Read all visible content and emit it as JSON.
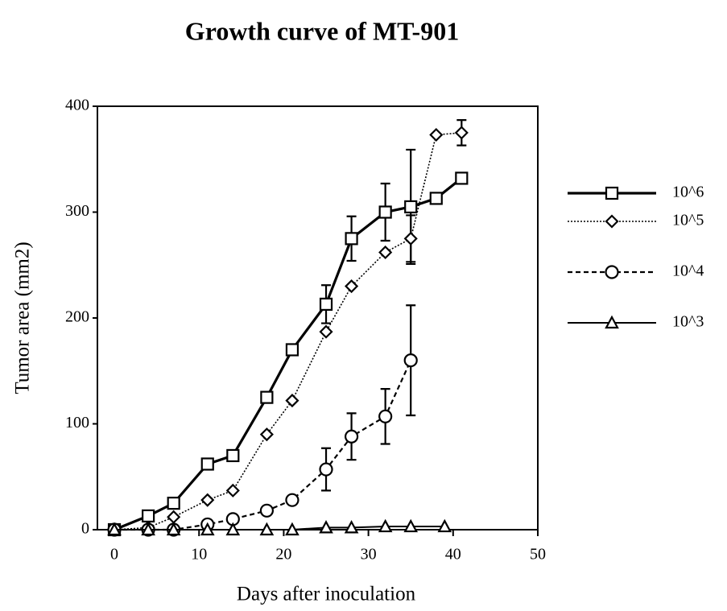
{
  "chart_data": {
    "type": "line",
    "title": "Growth curve of MT-901",
    "x_label": "Days after inoculation",
    "y_label": "Tumor area (mm2)",
    "xlim": [
      -2,
      50
    ],
    "xticks": [
      0,
      10,
      20,
      30,
      40,
      50
    ],
    "ylim": [
      0,
      400
    ],
    "yticks": [
      0,
      100,
      200,
      300,
      400
    ],
    "legend": "right",
    "series": [
      {
        "name": "10^6",
        "color": "#000000",
        "marker": "square",
        "line_style": "solid-thick",
        "x": [
          0,
          4,
          7,
          11,
          14,
          18,
          21,
          25,
          28,
          32,
          35,
          38,
          41
        ],
        "values": [
          0,
          13,
          25,
          62,
          70,
          125,
          170,
          213,
          275,
          300,
          305,
          313,
          332
        ],
        "errors": [
          null,
          null,
          null,
          null,
          null,
          null,
          null,
          18,
          21,
          27,
          54,
          null,
          null
        ]
      },
      {
        "name": "10^5",
        "color": "#000000",
        "marker": "diamond",
        "line_style": "dotted",
        "x": [
          0,
          4,
          7,
          11,
          14,
          18,
          21,
          25,
          28,
          32,
          35,
          38,
          41
        ],
        "values": [
          0,
          2,
          12,
          28,
          37,
          90,
          122,
          187,
          230,
          262,
          275,
          373,
          375
        ],
        "errors": [
          null,
          null,
          null,
          null,
          null,
          null,
          null,
          null,
          null,
          null,
          22,
          null,
          12
        ]
      },
      {
        "name": "10^4",
        "color": "#000000",
        "marker": "circle",
        "line_style": "dashed",
        "x": [
          0,
          4,
          7,
          11,
          14,
          18,
          21,
          25,
          28,
          32,
          35
        ],
        "values": [
          0,
          0,
          0,
          5,
          10,
          18,
          28,
          57,
          88,
          107,
          160
        ],
        "errors": [
          null,
          null,
          null,
          null,
          null,
          null,
          null,
          20,
          22,
          26,
          52
        ]
      },
      {
        "name": "10^3",
        "color": "#000000",
        "marker": "triangle",
        "line_style": "solid",
        "x": [
          0,
          4,
          7,
          11,
          14,
          18,
          21,
          25,
          28,
          32,
          35,
          39
        ],
        "values": [
          0,
          0,
          0,
          0,
          0,
          0,
          0,
          2,
          2,
          3,
          3,
          3
        ],
        "errors": [
          null,
          null,
          null,
          null,
          null,
          null,
          null,
          null,
          null,
          null,
          null,
          null
        ]
      }
    ]
  }
}
